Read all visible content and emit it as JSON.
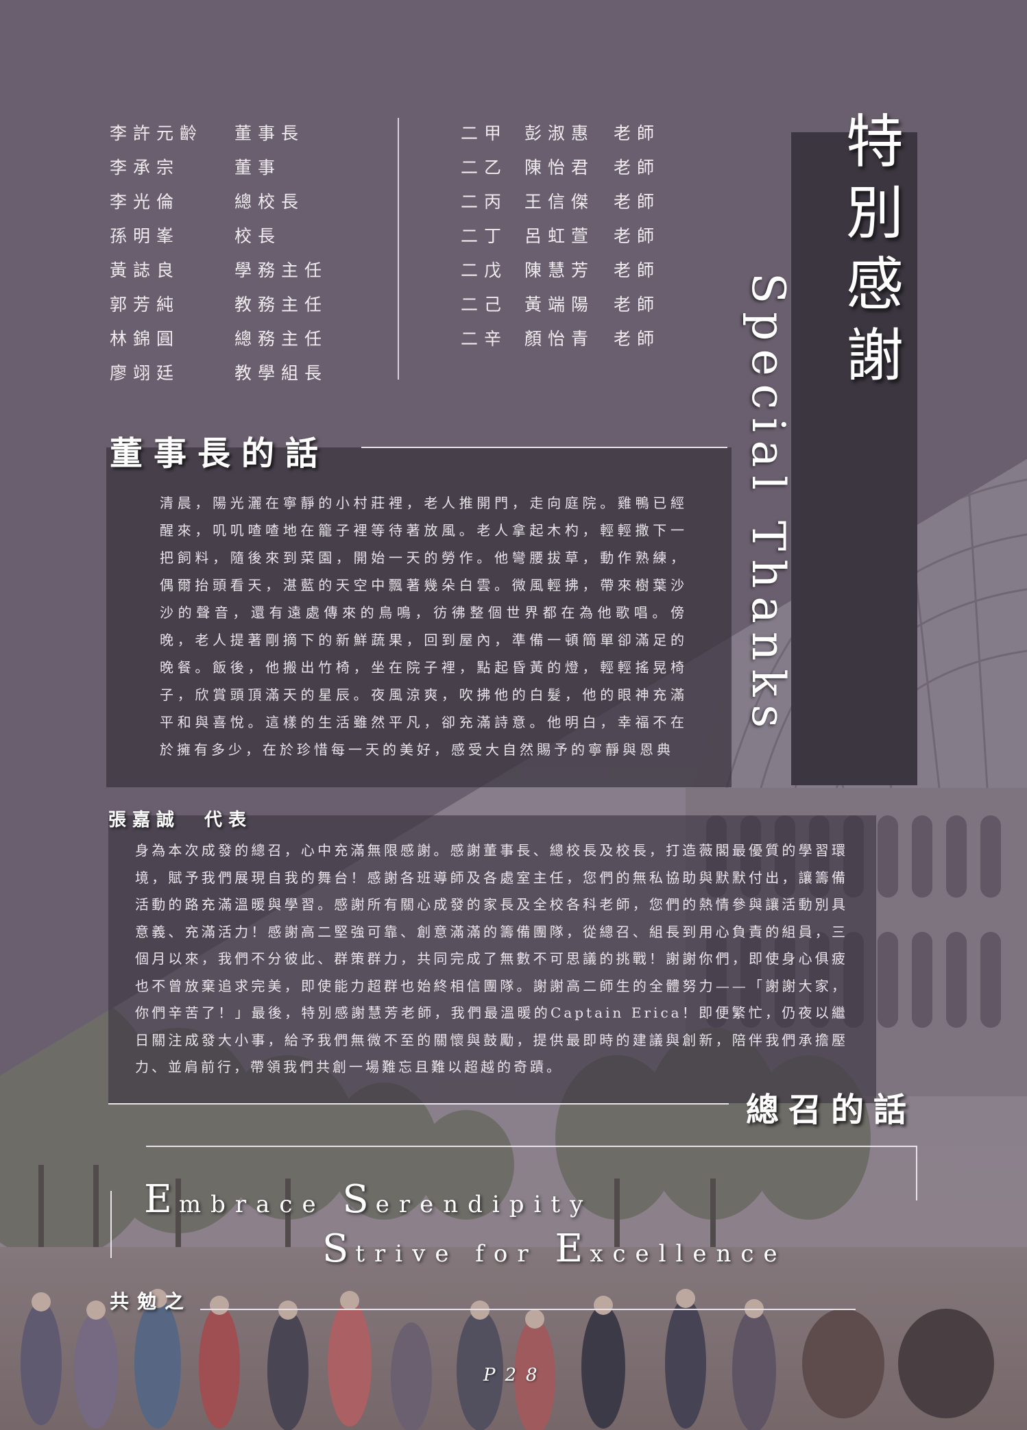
{
  "title": {
    "zh": "特別感謝",
    "en": "Special Thanks"
  },
  "staff_left": [
    {
      "name": "李許元齡",
      "role": "董事長"
    },
    {
      "name": "李承宗",
      "role": "董事"
    },
    {
      "name": "李光倫",
      "role": "總校長"
    },
    {
      "name": "孫明峯",
      "role": "校長"
    },
    {
      "name": "黃誌良",
      "role": "學務主任"
    },
    {
      "name": "郭芳純",
      "role": "教務主任"
    },
    {
      "name": "林錦圓",
      "role": "總務主任"
    },
    {
      "name": "廖翊廷",
      "role": "教學組長"
    }
  ],
  "staff_right": [
    {
      "class": "二甲",
      "name": "彭淑惠",
      "role": "老師"
    },
    {
      "class": "二乙",
      "name": "陳怡君",
      "role": "老師"
    },
    {
      "class": "二丙",
      "name": "王信傑",
      "role": "老師"
    },
    {
      "class": "二丁",
      "name": "呂虹萱",
      "role": "老師"
    },
    {
      "class": "二戊",
      "name": "陳慧芳",
      "role": "老師"
    },
    {
      "class": "二己",
      "name": "黃端陽",
      "role": "老師"
    },
    {
      "class": "二辛",
      "name": "顏怡青",
      "role": "老師"
    }
  ],
  "chairman": {
    "heading": "董事長的話",
    "text": "清晨，陽光灑在寧靜的小村莊裡，老人推開門，走向庭院。雞鴨已經醒來，叽叽喳喳地在籠子裡等待著放風。老人拿起木杓，輕輕撒下一把飼料，隨後來到菜園，開始一天的勞作。他彎腰拔草，動作熟練，偶爾抬頭看天，湛藍的天空中飄著幾朵白雲。微風輕拂，帶來樹葉沙沙的聲音，還有遠處傳來的鳥鳴，彷彿整個世界都在為他歌唱。傍晚，老人提著剛摘下的新鮮蔬果，回到屋內，準備一頓簡單卻滿足的晚餐。飯後，他搬出竹椅，坐在院子裡，點起昏黃的燈，輕輕搖晃椅子，欣賞頭頂滿天的星辰。夜風涼爽，吹拂他的白髮，他的眼神充滿平和與喜悅。這樣的生活雖然平凡，卻充滿詩意。他明白，幸福不在於擁有多少，在於珍惜每一天的美好，感受大自然賜予的寧靜與恩典"
  },
  "convener": {
    "speaker": "張嘉誠　代表",
    "heading": "總召的話",
    "text": "身為本次成發的總召，心中充滿無限感謝。感謝董事長、總校長及校長，打造薇閣最優質的學習環境，賦予我們展現自我的舞台！感謝各班導師及各處室主任，您們的無私協助與默默付出，讓籌備活動的路充滿溫暖與學習。感謝所有關心成發的家長及全校各科老師，您們的熱情參與讓活動別具意義、充滿活力！感謝高二堅強可靠、創意滿滿的籌備團隊，從總召、組長到用心負責的組員，三個月以來，我們不分彼此、群策群力，共同完成了無數不可思議的挑戰！謝謝你們，即使身心俱疲也不曾放棄追求完美，即使能力超群也始終相信團隊。謝謝高二師生的全體努力——「謝謝大家，你們辛苦了！」最後，特別感謝慧芳老師，我們最溫暖的Captain Erica！即便繁忙，仍夜以繼日關注成發大小事，給予我們無微不至的關懷與鼓勵，提供最即時的建議與創新，陪伴我們承擔壓力、並肩前行，帶領我們共創一場難忘且難以超越的奇蹟。"
  },
  "slogan": {
    "line1": [
      "E",
      "mbrace ",
      "S",
      "erendipity"
    ],
    "line2": [
      "S",
      "trive for ",
      "E",
      "xcellence"
    ],
    "signoff": "共勉之"
  },
  "page_number": "P28",
  "colors": {
    "mauve": "#6a5f6e",
    "dark_panel": "#3c3640",
    "text": "#f0ecef"
  },
  "background_art": "crystal-palace-street-scene-illustration"
}
